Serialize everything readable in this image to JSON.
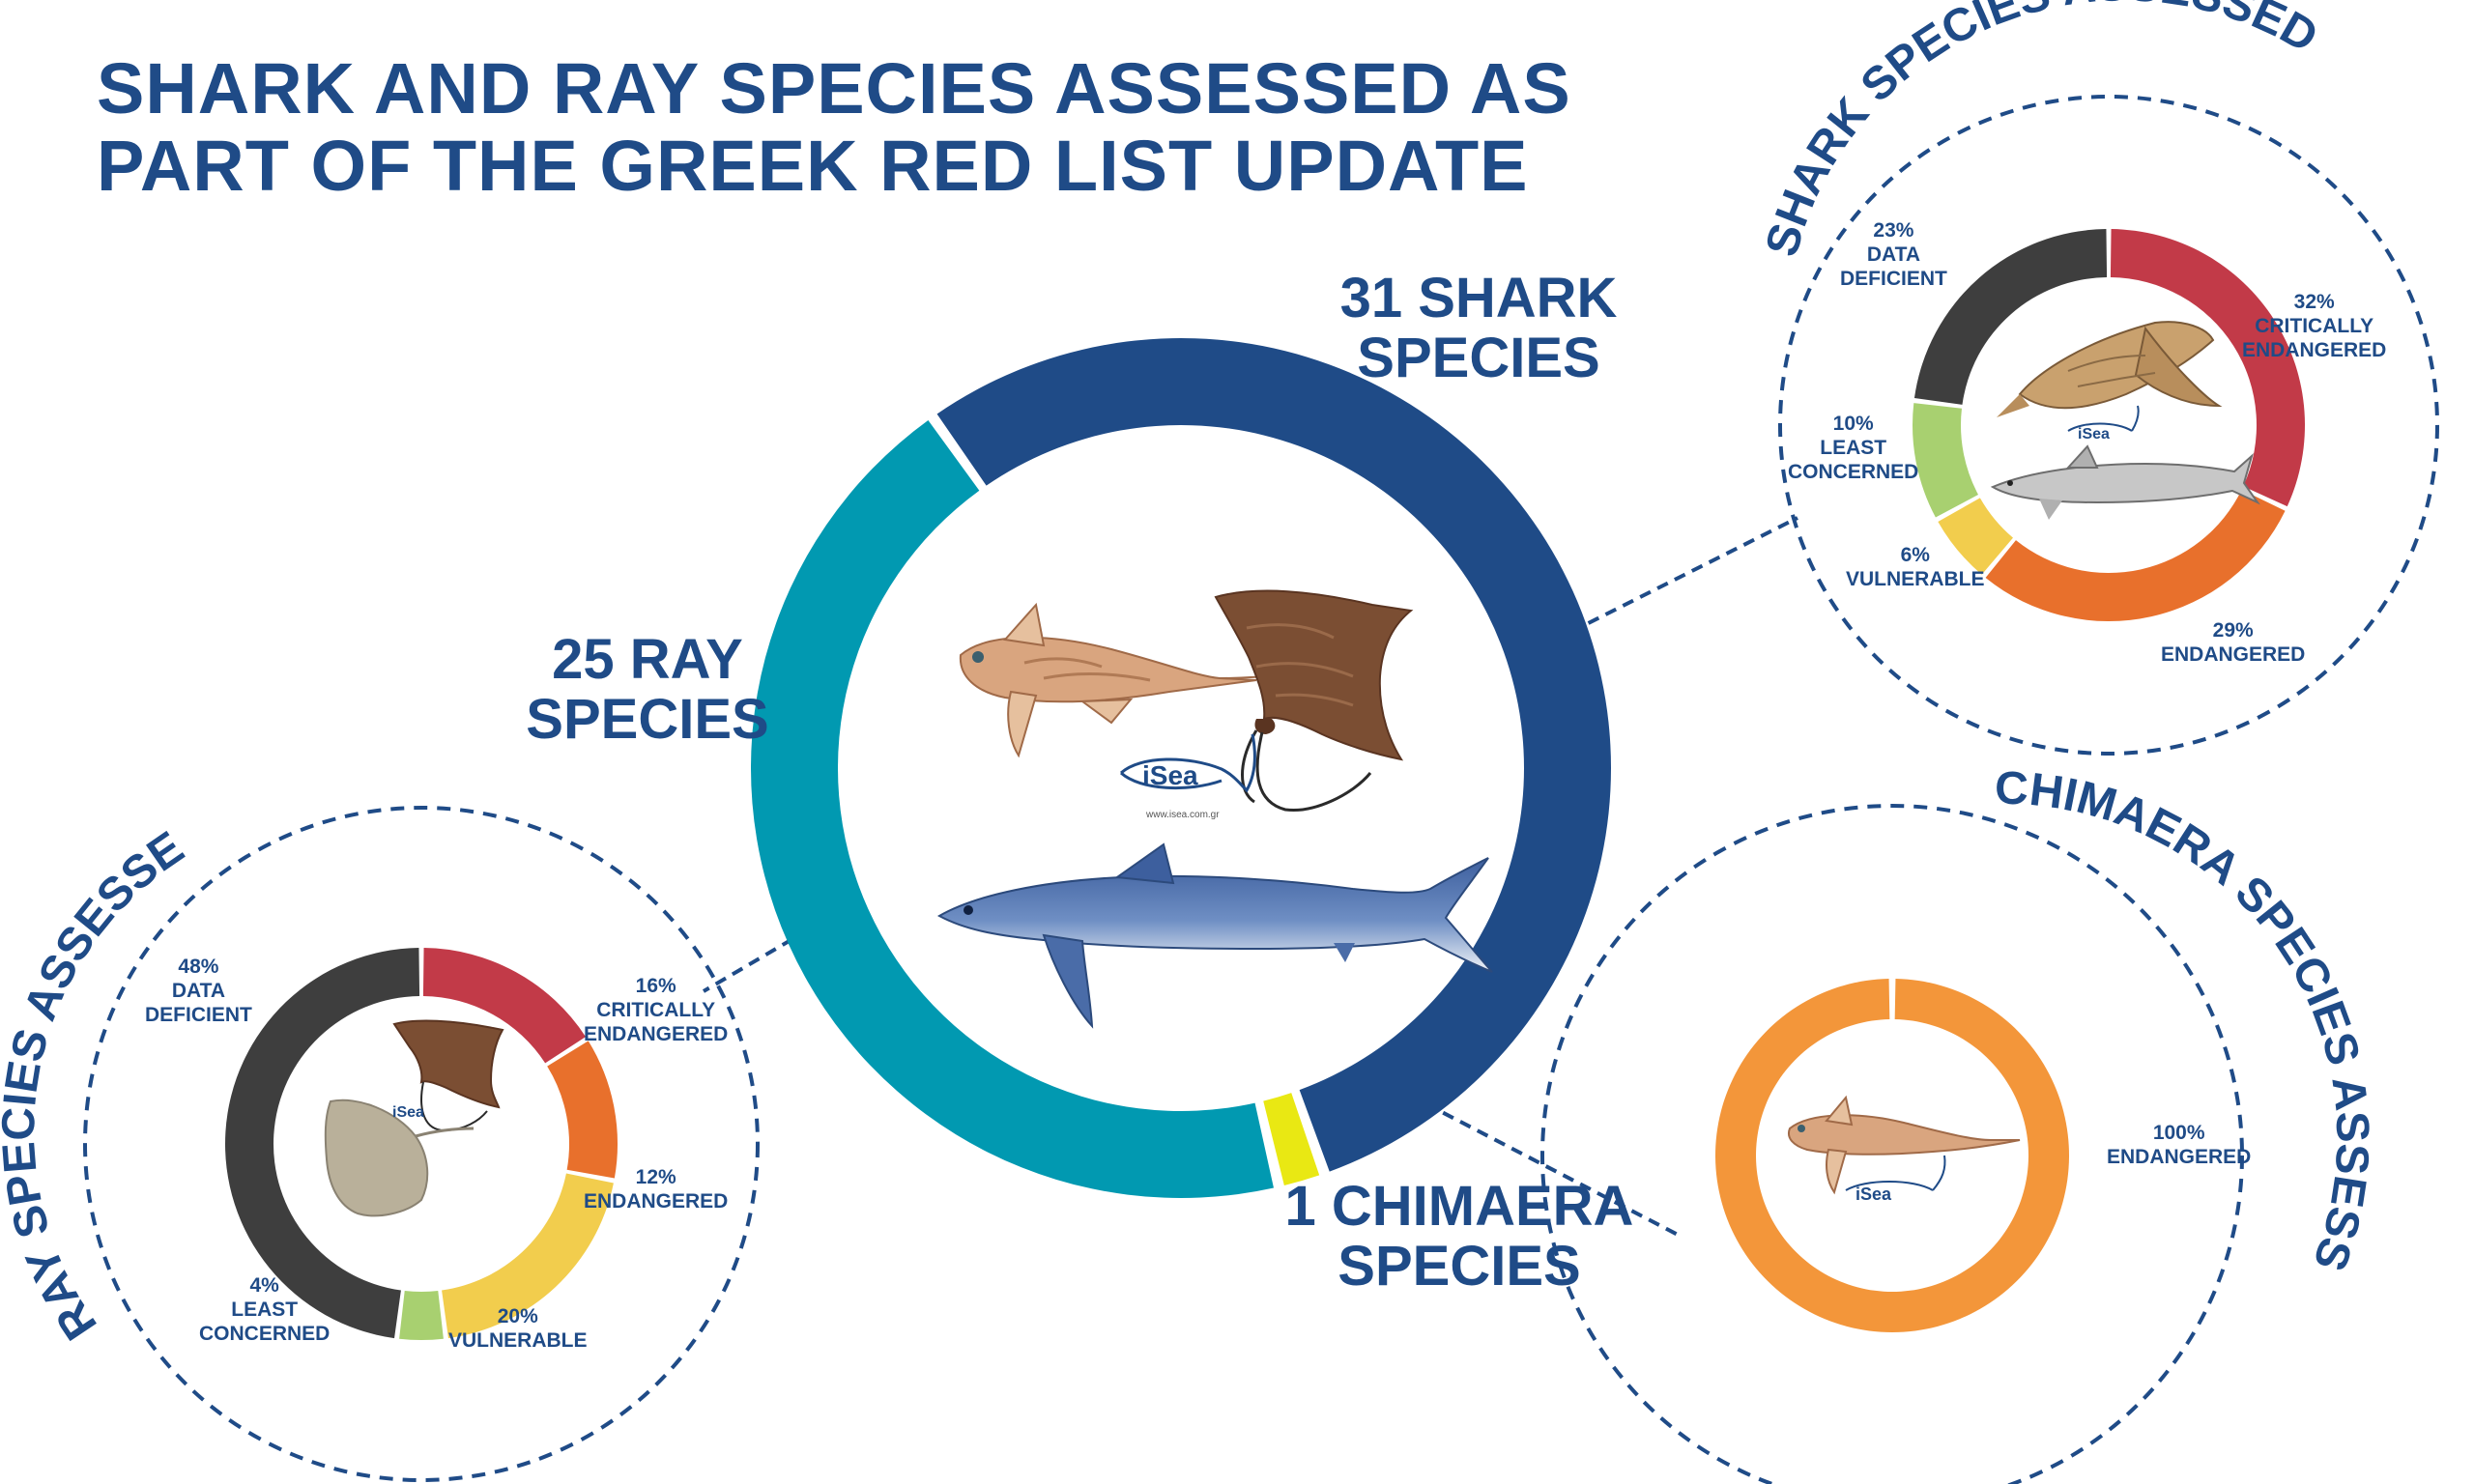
{
  "title": {
    "line1": "SHARK AND RAY SPECIES ASSESSED AS",
    "line2": "PART OF THE GREEK RED LIST UPDATE"
  },
  "colors": {
    "brand": "#1f4b87",
    "shark": "#1f4b87",
    "ray": "#0199b1",
    "chimaera": "#e9e813",
    "critically_endangered": "#c23a48",
    "endangered": "#e8702c",
    "vulnerable": "#f2cd4d",
    "least_concern": "#a8d070",
    "data_deficient": "#3e3e3e",
    "chimaera_endangered": "#f3963a"
  },
  "icons": [
    "chimaera-illustration",
    "eagle-ray-illustration",
    "blue-shark-illustration",
    "angel-shark-illustration",
    "smooth-hound-illustration",
    "skate-illustration",
    "isea-logo"
  ],
  "logo": {
    "text": "iSea",
    "url": "www.isea.com.gr"
  },
  "big_labels": {
    "shark": {
      "line1": "31 SHARK",
      "line2": "SPECIES"
    },
    "ray": {
      "line1": "25 RAY",
      "line2": "SPECIES"
    },
    "chimaera": {
      "line1": "1 CHIMAERA",
      "line2": "SPECIES"
    }
  },
  "arc_titles": {
    "shark": "SHARK SPECIES ASSESSED",
    "ray": "RAY SPECIES ASSESSED",
    "chimaera": "CHIMAERA SPECIES ASSESSED"
  },
  "chart_data": [
    {
      "type": "pie",
      "id": "main",
      "categories": [
        "SHARK SPECIES",
        "CHIMAERA SPECIES",
        "RAY SPECIES"
      ],
      "values": [
        31,
        1,
        25
      ],
      "colors": [
        "#1f4b87",
        "#e9e813",
        "#0199b1"
      ],
      "labels": [
        "31 SHARK SPECIES",
        "1 CHIMAERA SPECIES",
        "25 RAY SPECIES"
      ]
    },
    {
      "type": "pie",
      "id": "shark",
      "title": "SHARK SPECIES ASSESSED",
      "categories": [
        "CRITICALLY ENDANGERED",
        "ENDANGERED",
        "VULNERABLE",
        "LEAST CONCERNED",
        "DATA DEFICIENT"
      ],
      "values": [
        32,
        29,
        6,
        10,
        23
      ],
      "colors": [
        "#c23a48",
        "#e8702c",
        "#f2cd4d",
        "#a8d070",
        "#3e3e3e"
      ],
      "labels": [
        [
          "32%",
          "CRITICALLY",
          "ENDANGERED"
        ],
        [
          "29%",
          "ENDANGERED"
        ],
        [
          "6%",
          "VULNERABLE"
        ],
        [
          "10%",
          "LEAST",
          "CONCERNED"
        ],
        [
          "23%",
          "DATA",
          "DEFICIENT"
        ]
      ]
    },
    {
      "type": "pie",
      "id": "ray",
      "title": "RAY SPECIES ASSESSED",
      "categories": [
        "CRITICALLY ENDANGERED",
        "ENDANGERED",
        "VULNERABLE",
        "LEAST CONCERNED",
        "DATA DEFICIENT"
      ],
      "values": [
        16,
        12,
        20,
        4,
        48
      ],
      "colors": [
        "#c23a48",
        "#e8702c",
        "#f2cd4d",
        "#a8d070",
        "#3e3e3e"
      ],
      "labels": [
        [
          "16%",
          "CRITICALLY",
          "ENDANGERED"
        ],
        [
          "12%",
          "ENDANGERED"
        ],
        [
          "20%",
          "VULNERABLE"
        ],
        [
          "4%",
          "LEAST",
          "CONCERNED"
        ],
        [
          "48%",
          "DATA",
          "DEFICIENT"
        ]
      ]
    },
    {
      "type": "pie",
      "id": "chimaera",
      "title": "CHIMAERA SPECIES ASSESSED",
      "categories": [
        "ENDANGERED"
      ],
      "values": [
        100
      ],
      "colors": [
        "#f3963a"
      ],
      "labels": [
        [
          "100%",
          "ENDANGERED"
        ]
      ]
    }
  ]
}
